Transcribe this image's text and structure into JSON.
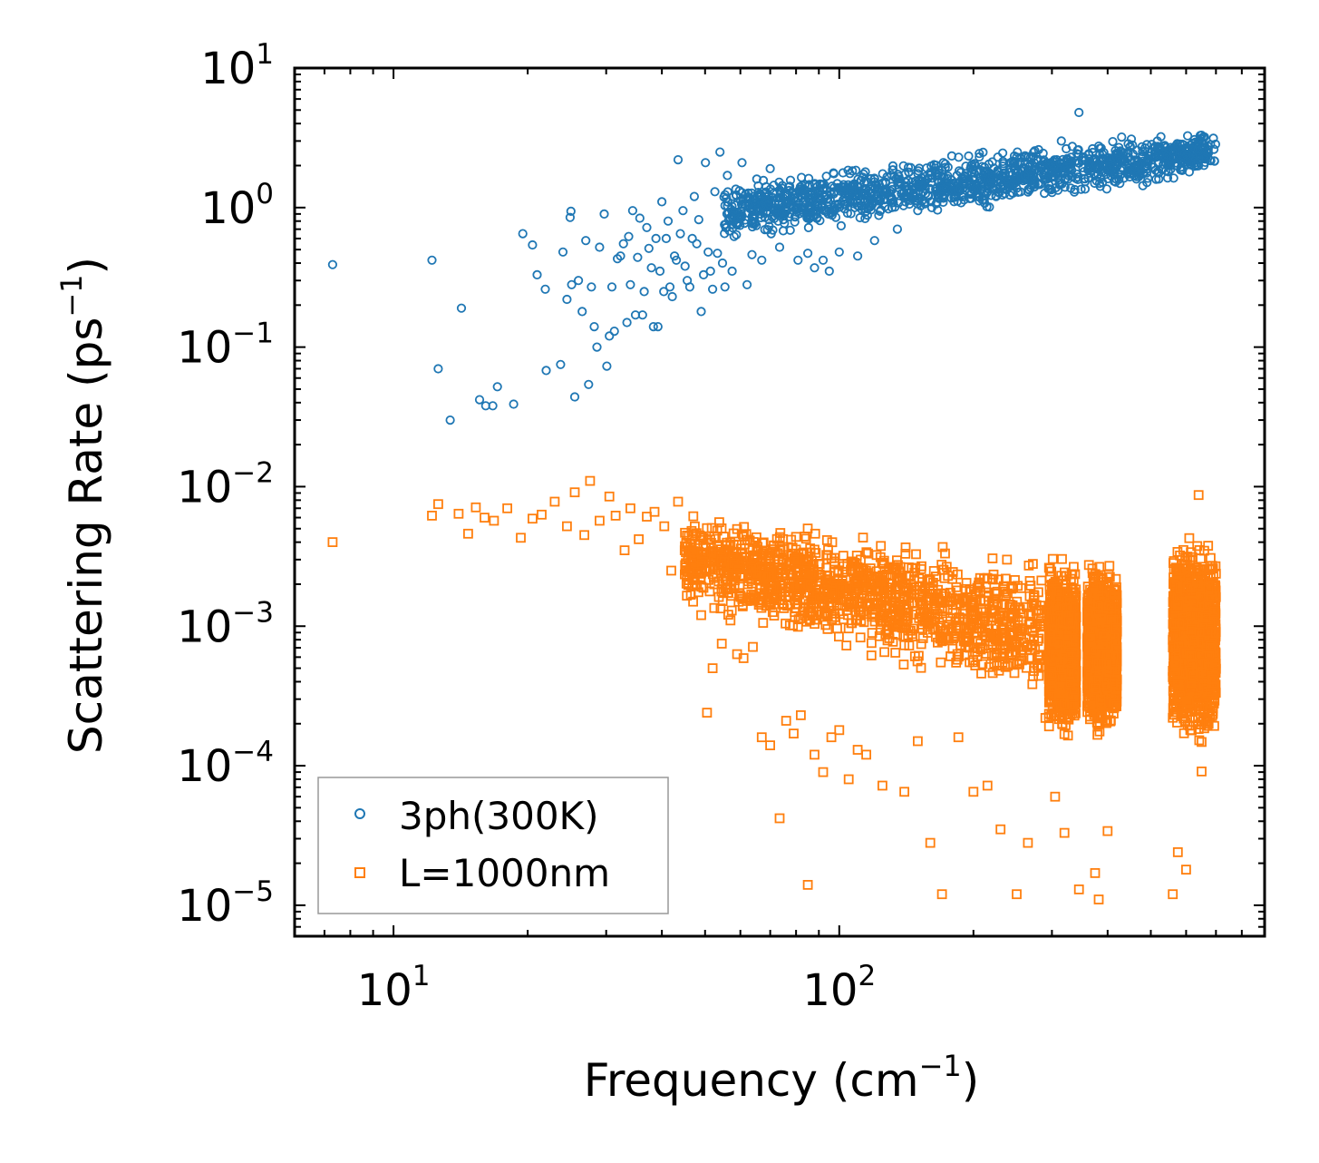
{
  "chart_data": {
    "type": "scatter",
    "title": "",
    "xlabel": "Frequency (cm",
    "xlabel_sup": "−1",
    "xlabel_tail": ")",
    "ylabel": "Scattering Rate (ps",
    "ylabel_sup": "−1",
    "ylabel_tail": ")",
    "xscale": "log",
    "yscale": "log",
    "xlim": [
      6.0,
      900
    ],
    "ylim": [
      6e-06,
      10
    ],
    "x_ticks": [
      {
        "value": 10,
        "base": "10",
        "exp": "1"
      },
      {
        "value": 100,
        "base": "10",
        "exp": "2"
      }
    ],
    "y_ticks": [
      {
        "value": 10,
        "base": "10",
        "exp": "1"
      },
      {
        "value": 1,
        "base": "10",
        "exp": "0"
      },
      {
        "value": 0.1,
        "base": "10",
        "exp": "−1"
      },
      {
        "value": 0.01,
        "base": "10",
        "exp": "−2"
      },
      {
        "value": 0.001,
        "base": "10",
        "exp": "−3"
      },
      {
        "value": 0.0001,
        "base": "10",
        "exp": "−4"
      },
      {
        "value": 1e-05,
        "base": "10",
        "exp": "−5"
      }
    ],
    "legend_position": "bottom-left",
    "series": [
      {
        "name": "3ph(300K)",
        "marker": "circle",
        "color": "#1f77b4",
        "points": [
          [
            7.3,
            0.39
          ],
          [
            12.2,
            0.42
          ],
          [
            12.6,
            0.07
          ],
          [
            13.4,
            0.03
          ],
          [
            14.2,
            0.19
          ],
          [
            15.6,
            0.042
          ],
          [
            16.1,
            0.038
          ],
          [
            16.7,
            0.038
          ],
          [
            17.1,
            0.052
          ],
          [
            18.6,
            0.039
          ],
          [
            19.5,
            0.65
          ],
          [
            20.5,
            0.54
          ],
          [
            21.0,
            0.33
          ],
          [
            21.9,
            0.26
          ],
          [
            22.0,
            0.068
          ],
          [
            23.7,
            0.075
          ],
          [
            24.0,
            0.48
          ],
          [
            24.5,
            0.22
          ],
          [
            24.9,
            0.85
          ],
          [
            25.0,
            0.94
          ],
          [
            25.1,
            0.28
          ],
          [
            25.5,
            0.044
          ],
          [
            26.0,
            0.3
          ],
          [
            26.5,
            0.18
          ],
          [
            27.0,
            0.58
          ],
          [
            27.4,
            0.054
          ],
          [
            27.8,
            0.27
          ],
          [
            28.2,
            0.14
          ],
          [
            28.6,
            0.1
          ],
          [
            29.0,
            0.52
          ],
          [
            29.7,
            0.9
          ],
          [
            30.1,
            0.073
          ],
          [
            30.5,
            0.12
          ],
          [
            30.9,
            0.27
          ],
          [
            31.3,
            0.13
          ],
          [
            31.8,
            0.43
          ],
          [
            32.3,
            0.45
          ],
          [
            32.8,
            0.55
          ],
          [
            33.4,
            0.15
          ],
          [
            33.7,
            0.62
          ],
          [
            34.0,
            0.28
          ],
          [
            34.4,
            0.95
          ],
          [
            34.9,
            0.17
          ],
          [
            35.3,
            0.44
          ],
          [
            35.7,
            0.84
          ],
          [
            36.2,
            0.17
          ],
          [
            36.5,
            0.25
          ],
          [
            37.0,
            0.72
          ],
          [
            37.4,
            0.51
          ],
          [
            37.9,
            0.37
          ],
          [
            38.3,
            0.14
          ],
          [
            38.8,
            0.6
          ],
          [
            39.2,
            0.14
          ],
          [
            39.6,
            0.35
          ],
          [
            40.0,
            1.1
          ],
          [
            40.4,
            0.25
          ],
          [
            40.9,
            0.6
          ],
          [
            41.3,
            0.8
          ],
          [
            41.7,
            0.27
          ],
          [
            42.2,
            0.23
          ],
          [
            42.7,
            0.45
          ],
          [
            43.1,
            0.42
          ],
          [
            43.5,
            2.2
          ],
          [
            44.0,
            0.65
          ],
          [
            44.6,
            0.95
          ],
          [
            45.1,
            0.38
          ],
          [
            45.6,
            0.3
          ],
          [
            46.2,
            0.27
          ],
          [
            46.8,
            0.6
          ],
          [
            47.3,
            1.2
          ],
          [
            47.9,
            0.55
          ],
          [
            48.4,
            0.82
          ],
          [
            49.0,
            0.18
          ],
          [
            49.6,
            0.33
          ],
          [
            50.1,
            2.1
          ],
          [
            50.8,
            0.48
          ],
          [
            51.4,
            0.35
          ],
          [
            52.0,
            0.26
          ],
          [
            52.6,
            1.3
          ],
          [
            53.3,
            0.47
          ],
          [
            54.0,
            2.5
          ],
          [
            54.7,
            0.4
          ],
          [
            55.4,
            0.27
          ],
          [
            56.1,
            1.7
          ],
          [
            57.5,
            0.35
          ],
          [
            59.0,
            0.75
          ],
          [
            60.5,
            2.1
          ],
          [
            62.1,
            0.28
          ],
          [
            63.7,
            0.46
          ],
          [
            65.3,
            1.6
          ],
          [
            67.0,
            0.42
          ],
          [
            70.0,
            1.9
          ],
          [
            73.5,
            0.52
          ],
          [
            77.0,
            1.4
          ],
          [
            80.8,
            0.42
          ],
          [
            85.0,
            0.47
          ],
          [
            88.0,
            0.37
          ],
          [
            92.0,
            0.42
          ],
          [
            95.0,
            0.35
          ],
          [
            100.0,
            0.48
          ],
          [
            110.0,
            0.45
          ],
          [
            120.0,
            0.58
          ],
          [
            135.0,
            0.7
          ],
          [
            150.0,
            0.95
          ],
          [
            170.0,
            1.2
          ],
          [
            190.0,
            1.5
          ],
          [
            220.0,
            1.7
          ],
          [
            250.0,
            2.3
          ],
          [
            280.0,
            2.6
          ],
          [
            315.0,
            3.0
          ],
          [
            345.0,
            4.8
          ],
          [
            390.0,
            2.4
          ],
          [
            430.0,
            3.2
          ],
          [
            560.0,
            2.5
          ],
          [
            610.0,
            1.8
          ],
          [
            650.0,
            2.6
          ]
        ],
        "dense_bands": [
          {
            "x": [
              55,
              700
            ],
            "ymin_at_start": 0.5,
            "ymax_at_start": 1.7,
            "ymin_at_end": 1.6,
            "ymax_at_end": 4.0
          }
        ]
      },
      {
        "name": "L=1000nm",
        "marker": "square",
        "color": "#ff7f0e",
        "points": [
          [
            7.3,
            0.004
          ],
          [
            12.2,
            0.0062
          ],
          [
            12.6,
            0.0075
          ],
          [
            14.0,
            0.0064
          ],
          [
            14.7,
            0.0046
          ],
          [
            15.3,
            0.0071
          ],
          [
            16.0,
            0.006
          ],
          [
            16.8,
            0.0057
          ],
          [
            18.0,
            0.007
          ],
          [
            19.3,
            0.0043
          ],
          [
            20.5,
            0.0059
          ],
          [
            21.5,
            0.0063
          ],
          [
            23.0,
            0.0078
          ],
          [
            24.5,
            0.0052
          ],
          [
            25.5,
            0.0091
          ],
          [
            26.8,
            0.0045
          ],
          [
            27.6,
            0.011
          ],
          [
            29.0,
            0.0057
          ],
          [
            30.5,
            0.0085
          ],
          [
            31.5,
            0.0062
          ],
          [
            33.0,
            0.0035
          ],
          [
            34.0,
            0.007
          ],
          [
            35.5,
            0.0042
          ],
          [
            37.0,
            0.0061
          ],
          [
            38.5,
            0.0066
          ],
          [
            40.5,
            0.0052
          ],
          [
            42.0,
            0.0025
          ],
          [
            43.5,
            0.0078
          ],
          [
            45.0,
            0.0035
          ],
          [
            47.0,
            0.0015
          ],
          [
            49.0,
            0.0012
          ],
          [
            50.5,
            0.00024
          ],
          [
            52.0,
            0.0005
          ],
          [
            54.5,
            0.00075
          ],
          [
            57.0,
            0.0011
          ],
          [
            59.0,
            0.00063
          ],
          [
            61.0,
            0.00059
          ],
          [
            64.0,
            0.00071
          ],
          [
            67.0,
            0.00016
          ],
          [
            70.0,
            0.00014
          ],
          [
            73.5,
            4.2e-05
          ],
          [
            76.0,
            0.00021
          ],
          [
            79.0,
            0.00017
          ],
          [
            82.0,
            0.00023
          ],
          [
            85.0,
            1.4e-05
          ],
          [
            88.0,
            0.00012
          ],
          [
            92.0,
            9e-05
          ],
          [
            96.0,
            0.00016
          ],
          [
            100.0,
            0.00018
          ],
          [
            105.0,
            8e-05
          ],
          [
            110.0,
            0.00013
          ],
          [
            115.0,
            0.00012
          ],
          [
            125.0,
            7.2e-05
          ],
          [
            140.0,
            6.5e-05
          ],
          [
            150.0,
            0.00015
          ],
          [
            160.0,
            2.8e-05
          ],
          [
            170.0,
            1.2e-05
          ],
          [
            185.0,
            0.00016
          ],
          [
            200.0,
            6.5e-05
          ],
          [
            215.0,
            7.2e-05
          ],
          [
            230.0,
            3.5e-05
          ],
          [
            250.0,
            1.2e-05
          ],
          [
            265.0,
            2.8e-05
          ],
          [
            290.0,
            0.00022
          ],
          [
            305.0,
            6e-05
          ],
          [
            320.0,
            3.3e-05
          ],
          [
            345.0,
            1.3e-05
          ],
          [
            375.0,
            1.7e-05
          ],
          [
            382.0,
            1.1e-05
          ],
          [
            400.0,
            3.4e-05
          ],
          [
            560.0,
            1.2e-05
          ],
          [
            575.0,
            2.4e-05
          ],
          [
            600.0,
            1.8e-05
          ],
          [
            640.0,
            0.0087
          ],
          [
            650.0,
            9.1e-05
          ],
          [
            680.0,
            0.00072
          ]
        ],
        "dense_bands": [
          {
            "x": [
              45,
              285
            ],
            "ymin_at_start": 0.0012,
            "ymax_at_start": 0.0075,
            "ymin_at_end": 0.00025,
            "ymax_at_end": 0.0035
          },
          {
            "x": [
              295,
              340
            ],
            "ymin": 0.00015,
            "ymax": 0.0032
          },
          {
            "x": [
              360,
              420
            ],
            "ymin": 0.00015,
            "ymax": 0.0032
          },
          {
            "x": [
              560,
              700
            ],
            "ymin": 0.00012,
            "ymax": 0.0052
          }
        ]
      }
    ]
  }
}
